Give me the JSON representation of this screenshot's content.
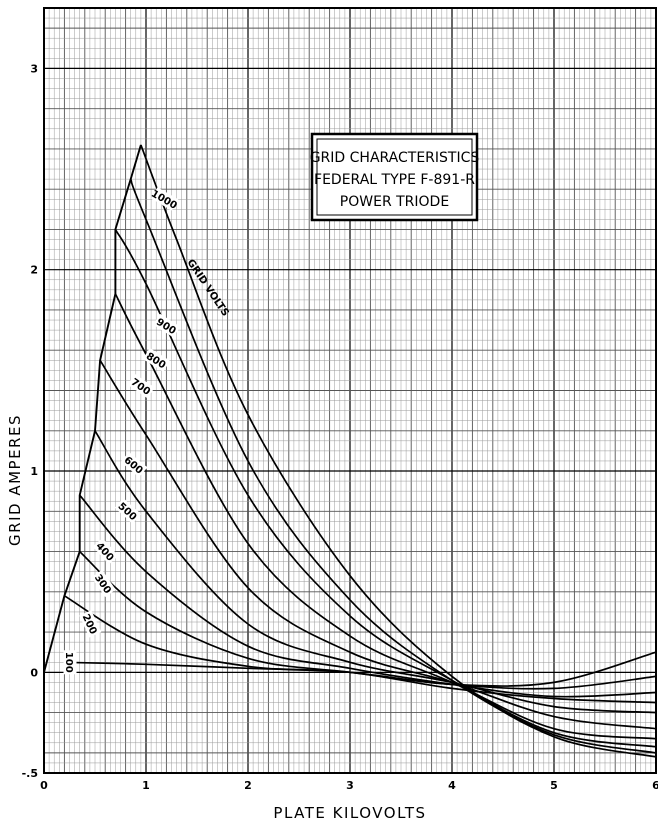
{
  "chart_data": {
    "type": "line",
    "title_lines": [
      "GRID CHARACTERISTICS",
      "FEDERAL TYPE F-891-R",
      "POWER TRIODE"
    ],
    "xlabel": "PLATE KILOVOLTS",
    "ylabel": "GRID AMPERES",
    "family_label": "GRID VOLTS",
    "xlim": [
      0,
      6
    ],
    "ylim": [
      -0.5,
      3.3
    ],
    "x_ticks": [
      "0",
      "1",
      "2",
      "3",
      "4",
      "5",
      "6"
    ],
    "y_ticks": [
      {
        "value": -0.5,
        "label": "-.5"
      },
      {
        "value": 0,
        "label": "0"
      },
      {
        "value": 1,
        "label": "1"
      },
      {
        "value": 2,
        "label": "2"
      },
      {
        "value": 3,
        "label": "3"
      }
    ],
    "grid": true,
    "series": [
      {
        "name": "100",
        "points": [
          [
            0.2,
            0.05
          ],
          [
            1,
            0.04
          ],
          [
            2,
            0.02
          ],
          [
            3,
            0.0
          ],
          [
            4,
            -0.08
          ],
          [
            5,
            -0.13
          ],
          [
            6,
            -0.15
          ]
        ]
      },
      {
        "name": "200",
        "points": [
          [
            0.2,
            0.38
          ],
          [
            1,
            0.14
          ],
          [
            2,
            0.03
          ],
          [
            3,
            0.0
          ],
          [
            4,
            -0.06
          ],
          [
            5,
            -0.05
          ],
          [
            6,
            0.1
          ]
        ]
      },
      {
        "name": "300",
        "points": [
          [
            0.35,
            0.6
          ],
          [
            1,
            0.3
          ],
          [
            2,
            0.07
          ],
          [
            3,
            0.0
          ],
          [
            4,
            -0.06
          ],
          [
            5,
            -0.08
          ],
          [
            6,
            -0.02
          ]
        ]
      },
      {
        "name": "400",
        "points": [
          [
            0.35,
            0.88
          ],
          [
            1,
            0.5
          ],
          [
            2,
            0.13
          ],
          [
            3,
            0.02
          ],
          [
            4,
            -0.06
          ],
          [
            5,
            -0.12
          ],
          [
            6,
            -0.1
          ]
        ]
      },
      {
        "name": "500",
        "points": [
          [
            0.5,
            1.2
          ],
          [
            1,
            0.8
          ],
          [
            2,
            0.24
          ],
          [
            3,
            0.05
          ],
          [
            4,
            -0.05
          ],
          [
            5,
            -0.17
          ],
          [
            6,
            -0.2
          ]
        ]
      },
      {
        "name": "600",
        "points": [
          [
            0.55,
            1.55
          ],
          [
            1,
            1.18
          ],
          [
            2,
            0.42
          ],
          [
            3,
            0.1
          ],
          [
            4,
            -0.05
          ],
          [
            5,
            -0.22
          ],
          [
            6,
            -0.28
          ]
        ]
      },
      {
        "name": "700",
        "points": [
          [
            0.7,
            1.88
          ],
          [
            1,
            1.58
          ],
          [
            2,
            0.64
          ],
          [
            3,
            0.18
          ],
          [
            4,
            -0.05
          ],
          [
            5,
            -0.28
          ],
          [
            6,
            -0.33
          ]
        ]
      },
      {
        "name": "800",
        "points": [
          [
            0.7,
            2.2
          ],
          [
            1,
            1.93
          ],
          [
            2,
            0.88
          ],
          [
            3,
            0.28
          ],
          [
            4,
            -0.04
          ],
          [
            5,
            -0.3
          ],
          [
            6,
            -0.37
          ]
        ]
      },
      {
        "name": "900",
        "points": [
          [
            0.85,
            2.45
          ],
          [
            1,
            2.25
          ],
          [
            2,
            1.05
          ],
          [
            3,
            0.36
          ],
          [
            4,
            -0.04
          ],
          [
            5,
            -0.31
          ],
          [
            6,
            -0.4
          ]
        ]
      },
      {
        "name": "1000",
        "points": [
          [
            0.95,
            2.62
          ],
          [
            1.3,
            2.15
          ],
          [
            2,
            1.28
          ],
          [
            3,
            0.48
          ],
          [
            4,
            -0.02
          ],
          [
            5,
            -0.32
          ],
          [
            6,
            -0.42
          ]
        ]
      }
    ],
    "envelope": [
      [
        0,
        0
      ],
      [
        0.2,
        0.38
      ],
      [
        0.35,
        0.6
      ],
      [
        0.35,
        0.88
      ],
      [
        0.5,
        1.2
      ],
      [
        0.55,
        1.55
      ],
      [
        0.7,
        1.88
      ],
      [
        0.7,
        2.2
      ],
      [
        0.85,
        2.45
      ],
      [
        0.95,
        2.62
      ]
    ]
  }
}
